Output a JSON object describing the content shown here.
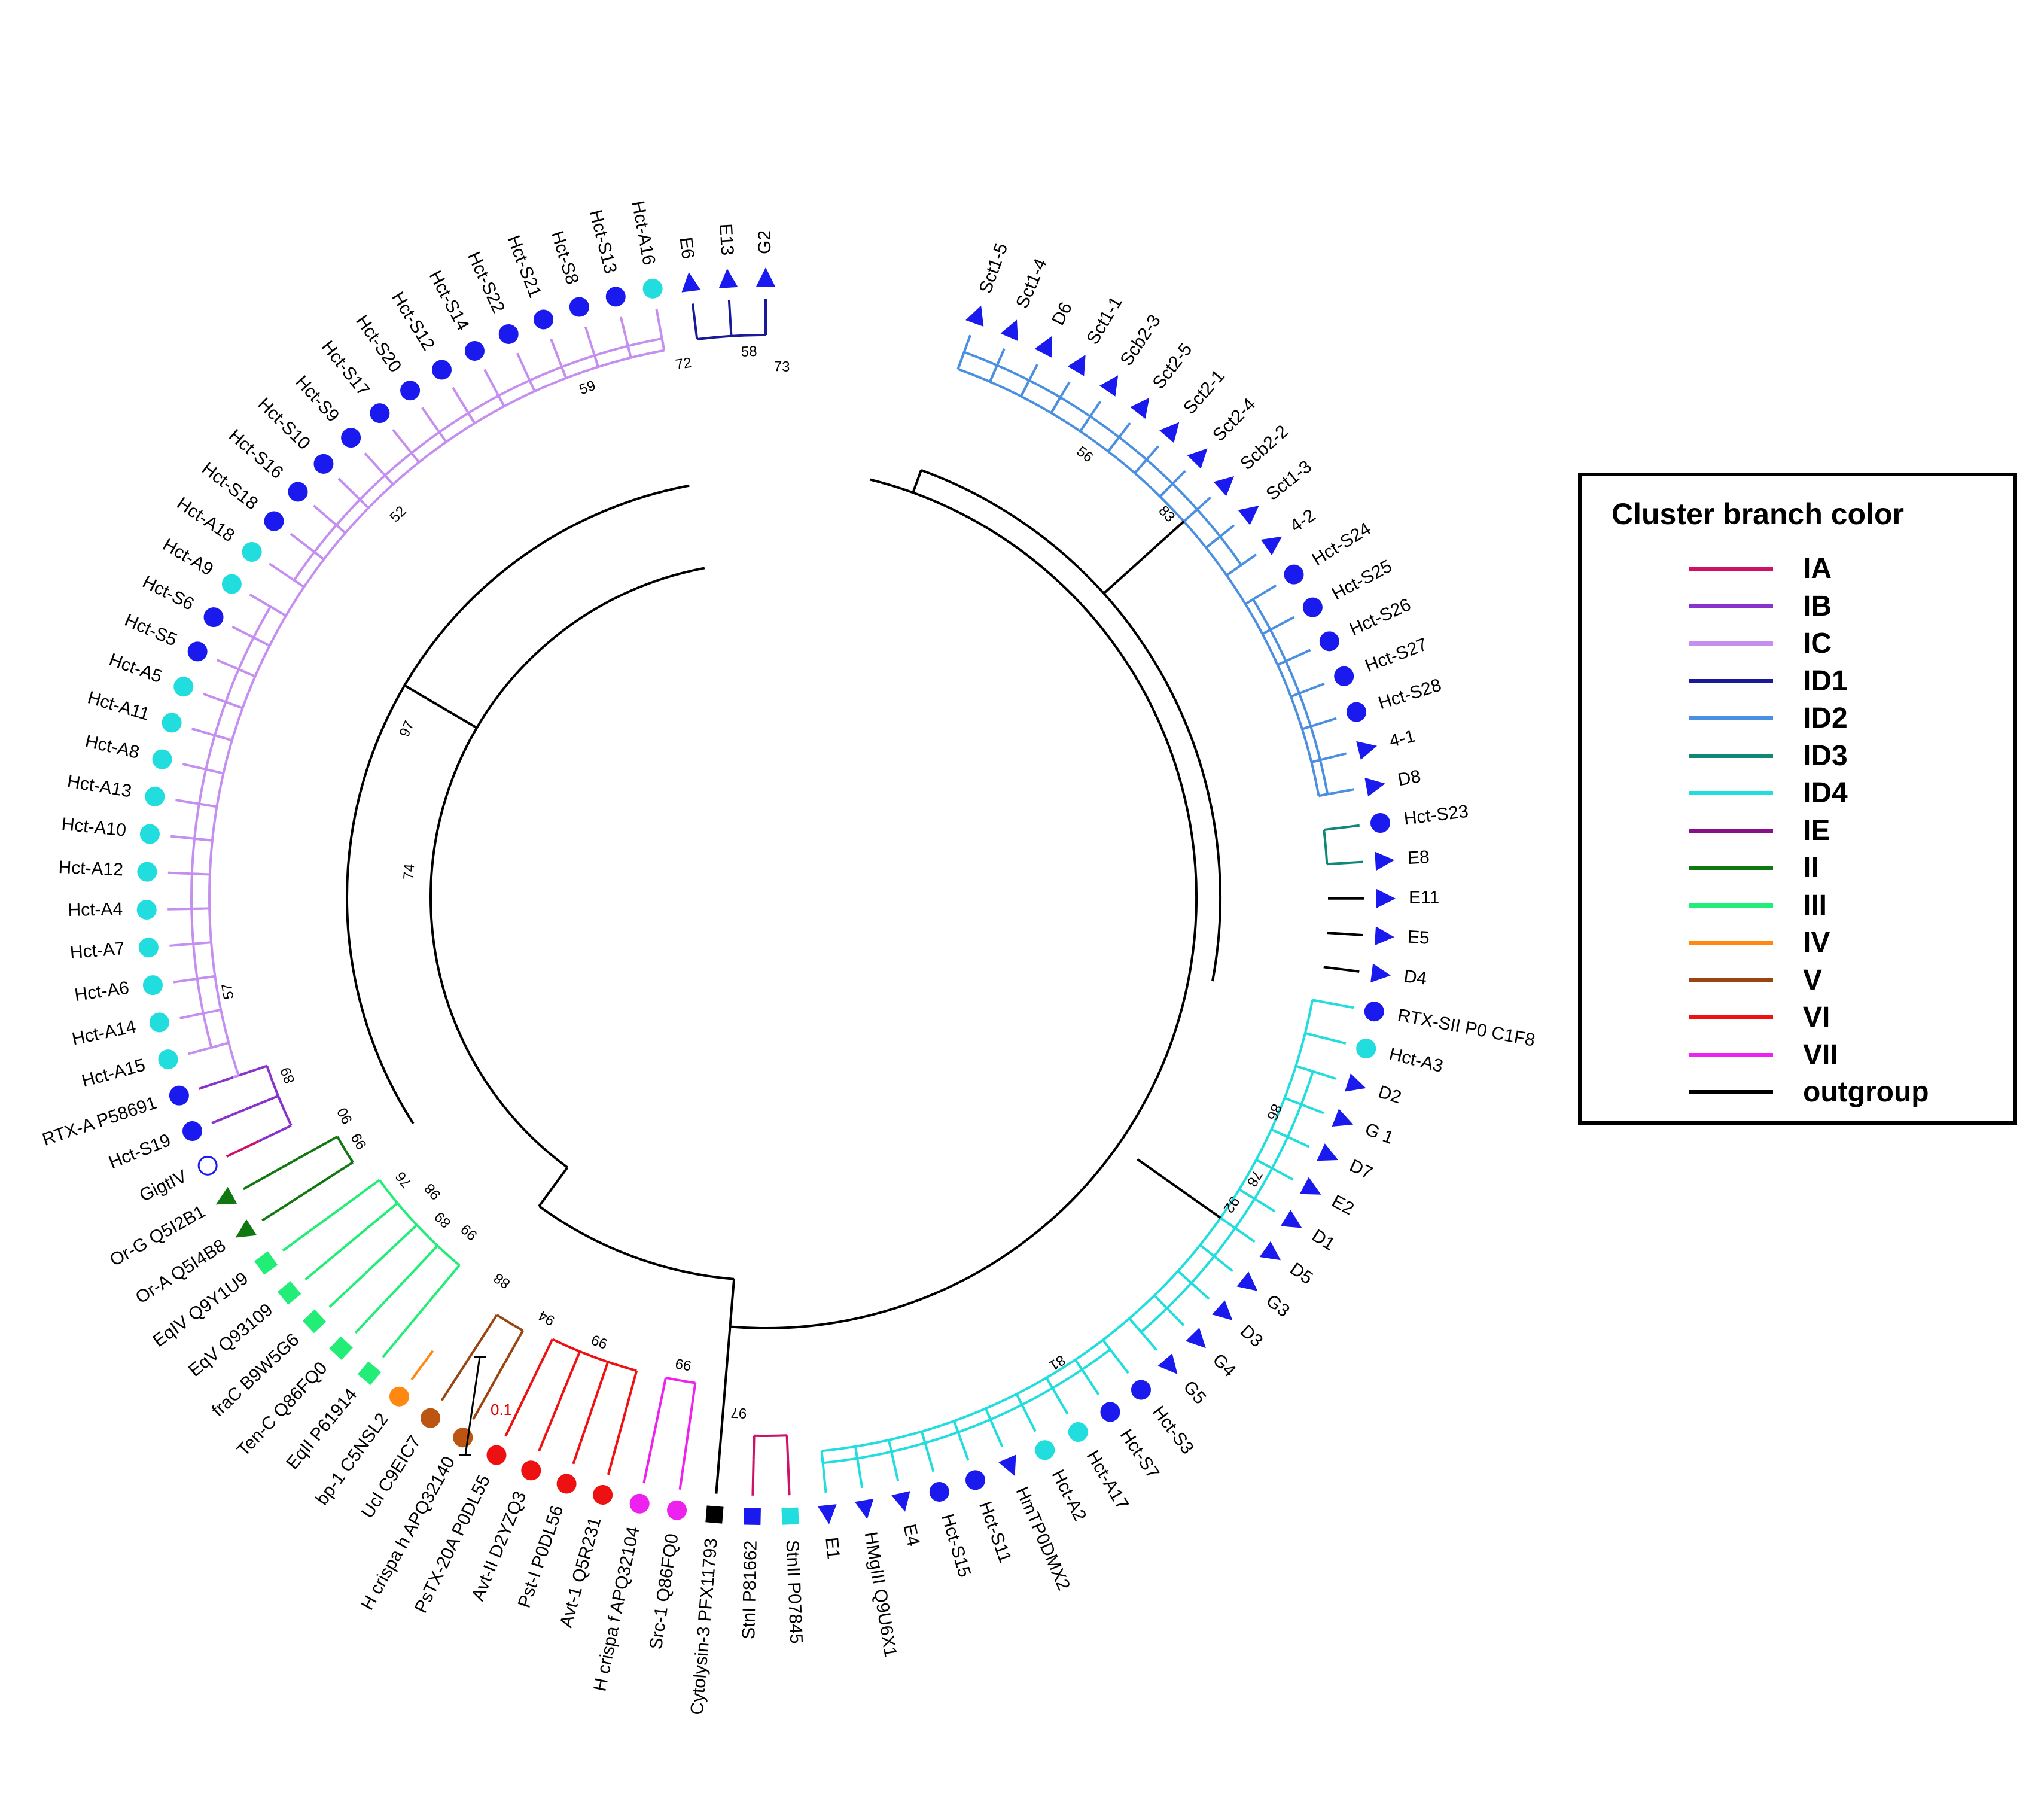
{
  "legend": {
    "title": "Cluster branch color",
    "items": [
      {
        "label": "IA",
        "color": "#cc1166"
      },
      {
        "label": "IB",
        "color": "#8833cc"
      },
      {
        "label": "IC",
        "color": "#c58ff0"
      },
      {
        "label": "ID1",
        "color": "#1a1a99"
      },
      {
        "label": "ID2",
        "color": "#4a8fe0"
      },
      {
        "label": "ID3",
        "color": "#118877"
      },
      {
        "label": "ID4",
        "color": "#22dddd"
      },
      {
        "label": "IE",
        "color": "#881188"
      },
      {
        "label": "II",
        "color": "#117711"
      },
      {
        "label": "III",
        "color": "#22ee77"
      },
      {
        "label": "IV",
        "color": "#ff8811"
      },
      {
        "label": "V",
        "color": "#994411"
      },
      {
        "label": "VI",
        "color": "#ee1111"
      },
      {
        "label": "VII",
        "color": "#ee22ee"
      },
      {
        "label": "outgroup",
        "color": "#000000"
      }
    ]
  },
  "scale_bar": {
    "label": "0.1"
  },
  "tree": {
    "leaves": [
      {
        "name": "Sct1-5",
        "marker": "triangle",
        "color": "#1a1aee",
        "cluster": "ID2"
      },
      {
        "name": "Sct1-4",
        "marker": "triangle",
        "color": "#1a1aee",
        "cluster": "ID2"
      },
      {
        "name": "D6",
        "marker": "triangle",
        "color": "#1a1aee",
        "cluster": "ID2"
      },
      {
        "name": "Sct1-1",
        "marker": "triangle",
        "color": "#1a1aee",
        "cluster": "ID2"
      },
      {
        "name": "Scb2-3",
        "marker": "triangle",
        "color": "#1a1aee",
        "cluster": "ID2"
      },
      {
        "name": "Sct2-5",
        "marker": "triangle",
        "color": "#1a1aee",
        "cluster": "ID2"
      },
      {
        "name": "Sct2-1",
        "marker": "triangle",
        "color": "#1a1aee",
        "cluster": "ID2"
      },
      {
        "name": "Sct2-4",
        "marker": "triangle",
        "color": "#1a1aee",
        "cluster": "ID2"
      },
      {
        "name": "Scb2-2",
        "marker": "triangle",
        "color": "#1a1aee",
        "cluster": "ID2"
      },
      {
        "name": "Sct1-3",
        "marker": "triangle",
        "color": "#1a1aee",
        "cluster": "ID2"
      },
      {
        "name": "4-2",
        "marker": "triangle",
        "color": "#1a1aee",
        "cluster": "ID2"
      },
      {
        "name": "Hct-S24",
        "marker": "circle",
        "color": "#1a1aee",
        "cluster": "ID2"
      },
      {
        "name": "Hct-S25",
        "marker": "circle",
        "color": "#1a1aee",
        "cluster": "ID2"
      },
      {
        "name": "Hct-S26",
        "marker": "circle",
        "color": "#1a1aee",
        "cluster": "ID2"
      },
      {
        "name": "Hct-S27",
        "marker": "circle",
        "color": "#1a1aee",
        "cluster": "ID2"
      },
      {
        "name": "Hct-S28",
        "marker": "circle",
        "color": "#1a1aee",
        "cluster": "ID2"
      },
      {
        "name": "4-1",
        "marker": "triangle",
        "color": "#1a1aee",
        "cluster": "ID2"
      },
      {
        "name": "D8",
        "marker": "triangle",
        "color": "#1a1aee",
        "cluster": "ID2"
      },
      {
        "name": "Hct-S23",
        "marker": "circle",
        "color": "#1a1aee",
        "cluster": "ID3"
      },
      {
        "name": "E8",
        "marker": "triangle",
        "color": "#1a1aee",
        "cluster": "ID3"
      },
      {
        "name": "E11",
        "marker": "triangle",
        "color": "#1a1aee",
        "cluster": "outgroup"
      },
      {
        "name": "E5",
        "marker": "triangle",
        "color": "#1a1aee",
        "cluster": "outgroup"
      },
      {
        "name": "D4",
        "marker": "triangle",
        "color": "#1a1aee",
        "cluster": "outgroup"
      },
      {
        "name": "RTX-SII P0 C1F8",
        "marker": "circle",
        "color": "#1a1aee",
        "cluster": "ID4"
      },
      {
        "name": "Hct-A3",
        "marker": "circle",
        "color": "#22dddd",
        "cluster": "ID4"
      },
      {
        "name": "D2",
        "marker": "triangle",
        "color": "#1a1aee",
        "cluster": "ID4"
      },
      {
        "name": "G 1",
        "marker": "triangle",
        "color": "#1a1aee",
        "cluster": "ID4"
      },
      {
        "name": "D7",
        "marker": "triangle",
        "color": "#1a1aee",
        "cluster": "ID4"
      },
      {
        "name": "E2",
        "marker": "triangle",
        "color": "#1a1aee",
        "cluster": "ID4"
      },
      {
        "name": "D1",
        "marker": "triangle",
        "color": "#1a1aee",
        "cluster": "ID4"
      },
      {
        "name": "D5",
        "marker": "triangle",
        "color": "#1a1aee",
        "cluster": "ID4"
      },
      {
        "name": "G3",
        "marker": "triangle",
        "color": "#1a1aee",
        "cluster": "ID4"
      },
      {
        "name": "D3",
        "marker": "triangle",
        "color": "#1a1aee",
        "cluster": "ID4"
      },
      {
        "name": "G4",
        "marker": "triangle",
        "color": "#1a1aee",
        "cluster": "ID4"
      },
      {
        "name": "G5",
        "marker": "triangle",
        "color": "#1a1aee",
        "cluster": "ID4"
      },
      {
        "name": "Hct-S3",
        "marker": "circle",
        "color": "#1a1aee",
        "cluster": "ID4"
      },
      {
        "name": "Hct-S7",
        "marker": "circle",
        "color": "#1a1aee",
        "cluster": "ID4"
      },
      {
        "name": "Hct-A17",
        "marker": "circle",
        "color": "#22dddd",
        "cluster": "ID4"
      },
      {
        "name": "Hct-A2",
        "marker": "circle",
        "color": "#22dddd",
        "cluster": "ID4"
      },
      {
        "name": "HmTP0DMX2",
        "marker": "triangle",
        "color": "#1a1aee",
        "cluster": "ID4"
      },
      {
        "name": "Hct-S11",
        "marker": "circle",
        "color": "#1a1aee",
        "cluster": "ID4"
      },
      {
        "name": "Hct-S15",
        "marker": "circle",
        "color": "#1a1aee",
        "cluster": "ID4"
      },
      {
        "name": "E4",
        "marker": "triangle",
        "color": "#1a1aee",
        "cluster": "ID4"
      },
      {
        "name": "HMgIII Q9U6X1",
        "marker": "triangle",
        "color": "#1a1aee",
        "cluster": "ID4"
      },
      {
        "name": "E1",
        "marker": "triangle",
        "color": "#1a1aee",
        "cluster": "ID4"
      },
      {
        "name": "StnII P07845",
        "marker": "square",
        "color": "#22dddd",
        "cluster": "IA"
      },
      {
        "name": "StnI P81662",
        "marker": "square",
        "color": "#1a1aee",
        "cluster": "IA"
      },
      {
        "name": "Cytolysin-3 PFX11793",
        "marker": "square",
        "color": "#000000",
        "cluster": "outgroup"
      },
      {
        "name": "Src-1 Q86FQ0",
        "marker": "circle",
        "color": "#ee22ee",
        "cluster": "VII"
      },
      {
        "name": "H crispa f APQ32104",
        "marker": "circle",
        "color": "#ee22ee",
        "cluster": "VII"
      },
      {
        "name": "Avt-1 Q5R231",
        "marker": "circle",
        "color": "#ee1111",
        "cluster": "VI"
      },
      {
        "name": "Pst-I P0DL56",
        "marker": "circle",
        "color": "#ee1111",
        "cluster": "VI"
      },
      {
        "name": "Avt-II D2YZQ3",
        "marker": "circle",
        "color": "#ee1111",
        "cluster": "VI"
      },
      {
        "name": "PsTX-20A P0DL55",
        "marker": "circle",
        "color": "#ee1111",
        "cluster": "VI"
      },
      {
        "name": "H crispa h APQ32140",
        "marker": "circle",
        "color": "#bb5511",
        "cluster": "V"
      },
      {
        "name": "Ucl C9EIC7",
        "marker": "circle",
        "color": "#bb5511",
        "cluster": "V"
      },
      {
        "name": "bp-1 C5NSL2",
        "marker": "circle",
        "color": "#ff8811",
        "cluster": "IV"
      },
      {
        "name": "EqII P61914",
        "marker": "square",
        "color": "#22ee77",
        "cluster": "III"
      },
      {
        "name": "Ten-C Q86FQ0",
        "marker": "square",
        "color": "#22ee77",
        "cluster": "III"
      },
      {
        "name": "fraC B9W5G6",
        "marker": "square",
        "color": "#22ee77",
        "cluster": "III"
      },
      {
        "name": "EqV Q93109",
        "marker": "square",
        "color": "#22ee77",
        "cluster": "III"
      },
      {
        "name": "EqIV Q9Y1U9",
        "marker": "square",
        "color": "#22ee77",
        "cluster": "III"
      },
      {
        "name": "Or-A Q5I4B8",
        "marker": "triangle",
        "color": "#117711",
        "cluster": "II"
      },
      {
        "name": "Or-G Q5I2B1",
        "marker": "triangle",
        "color": "#117711",
        "cluster": "II"
      },
      {
        "name": "GigtIV",
        "marker": "circle-open",
        "color": "#1a1aee",
        "cluster": "IA"
      },
      {
        "name": "Hct-S19",
        "marker": "circle",
        "color": "#1a1aee",
        "cluster": "IB"
      },
      {
        "name": "RTX-A P58691",
        "marker": "circle",
        "color": "#1a1aee",
        "cluster": "IB"
      },
      {
        "name": "Hct-A15",
        "marker": "circle",
        "color": "#22dddd",
        "cluster": "IC"
      },
      {
        "name": "Hct-A14",
        "marker": "circle",
        "color": "#22dddd",
        "cluster": "IC"
      },
      {
        "name": "Hct-A6",
        "marker": "circle",
        "color": "#22dddd",
        "cluster": "IC"
      },
      {
        "name": "Hct-A7",
        "marker": "circle",
        "color": "#22dddd",
        "cluster": "IC"
      },
      {
        "name": "Hct-A4",
        "marker": "circle",
        "color": "#22dddd",
        "cluster": "IC"
      },
      {
        "name": "Hct-A12",
        "marker": "circle",
        "color": "#22dddd",
        "cluster": "IC"
      },
      {
        "name": "Hct-A10",
        "marker": "circle",
        "color": "#22dddd",
        "cluster": "IC"
      },
      {
        "name": "Hct-A13",
        "marker": "circle",
        "color": "#22dddd",
        "cluster": "IC"
      },
      {
        "name": "Hct-A8",
        "marker": "circle",
        "color": "#22dddd",
        "cluster": "IC"
      },
      {
        "name": "Hct-A11",
        "marker": "circle",
        "color": "#22dddd",
        "cluster": "IC"
      },
      {
        "name": "Hct-A5",
        "marker": "circle",
        "color": "#22dddd",
        "cluster": "IC"
      },
      {
        "name": "Hct-S5",
        "marker": "circle",
        "color": "#1a1aee",
        "cluster": "IC"
      },
      {
        "name": "Hct-S6",
        "marker": "circle",
        "color": "#1a1aee",
        "cluster": "IC"
      },
      {
        "name": "Hct-A9",
        "marker": "circle",
        "color": "#22dddd",
        "cluster": "IC"
      },
      {
        "name": "Hct-A18",
        "marker": "circle",
        "color": "#22dddd",
        "cluster": "IC"
      },
      {
        "name": "Hct-S18",
        "marker": "circle",
        "color": "#1a1aee",
        "cluster": "IC"
      },
      {
        "name": "Hct-S16",
        "marker": "circle",
        "color": "#1a1aee",
        "cluster": "IC"
      },
      {
        "name": "Hct-S10",
        "marker": "circle",
        "color": "#1a1aee",
        "cluster": "IC"
      },
      {
        "name": "Hct-S9",
        "marker": "circle",
        "color": "#1a1aee",
        "cluster": "IC"
      },
      {
        "name": "Hct-S17",
        "marker": "circle",
        "color": "#1a1aee",
        "cluster": "IC"
      },
      {
        "name": "Hct-S20",
        "marker": "circle",
        "color": "#1a1aee",
        "cluster": "IC"
      },
      {
        "name": "Hct-S12",
        "marker": "circle",
        "color": "#1a1aee",
        "cluster": "IC"
      },
      {
        "name": "Hct-S14",
        "marker": "circle",
        "color": "#1a1aee",
        "cluster": "IC"
      },
      {
        "name": "Hct-S22",
        "marker": "circle",
        "color": "#1a1aee",
        "cluster": "IC"
      },
      {
        "name": "Hct-S21",
        "marker": "circle",
        "color": "#1a1aee",
        "cluster": "IC"
      },
      {
        "name": "Hct-S8",
        "marker": "circle",
        "color": "#1a1aee",
        "cluster": "IC"
      },
      {
        "name": "Hct-S13",
        "marker": "circle",
        "color": "#1a1aee",
        "cluster": "IC"
      },
      {
        "name": "Hct-A16",
        "marker": "circle",
        "color": "#22dddd",
        "cluster": "IC"
      },
      {
        "name": "E6",
        "marker": "triangle",
        "color": "#1a1aee",
        "cluster": "ID1"
      },
      {
        "name": "E13",
        "marker": "triangle",
        "color": "#1a1aee",
        "cluster": "ID1"
      },
      {
        "name": "G2",
        "marker": "triangle",
        "color": "#1a1aee",
        "cluster": "ID1"
      }
    ],
    "support_values": [
      "56",
      "83",
      "58",
      "73",
      "72",
      "59",
      "52",
      "97",
      "74",
      "57",
      "89",
      "90",
      "76",
      "98",
      "99",
      "89",
      "99",
      "88",
      "99",
      "94",
      "99",
      "97",
      "86",
      "78",
      "92",
      "81"
    ]
  }
}
